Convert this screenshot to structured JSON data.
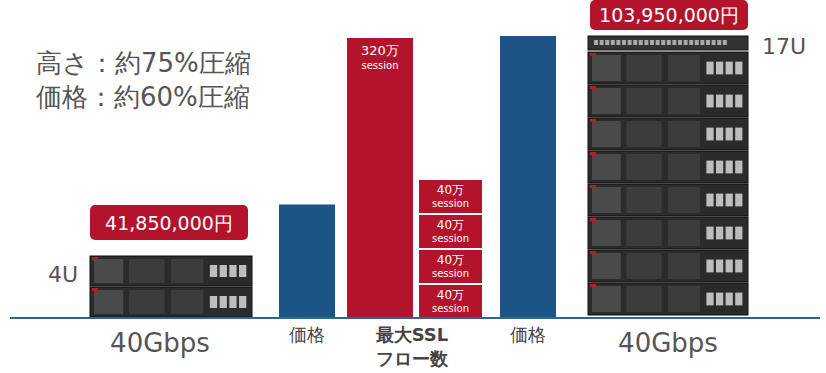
{
  "chart_data": {
    "type": "bar",
    "tick_labels": false,
    "annotations": [
      "高さ：約75%圧縮",
      "価格：約60%圧縮"
    ],
    "products": [
      {
        "throughput": "40Gbps",
        "rack_height": "4U"
      },
      {
        "throughput": "40Gbps",
        "rack_height": "17U"
      }
    ],
    "price": {
      "categories": [
        "価格",
        "価格"
      ],
      "values": [
        41850000,
        103950000
      ],
      "value_labels": [
        "41,850,000円",
        "103,950,000円"
      ],
      "color": "#1c5487",
      "ylim": [
        0,
        103950000
      ]
    },
    "ssl_flows": {
      "category": [
        "最大SSL",
        "フロー数"
      ],
      "unit": "session",
      "series": [
        {
          "values": [
            3200000
          ],
          "value_labels": [
            "320万"
          ],
          "color": "#b3142c"
        },
        {
          "values": [
            400000,
            400000,
            400000,
            400000
          ],
          "value_labels": [
            "40万",
            "40万",
            "40万",
            "40万"
          ],
          "color": "#b3142c",
          "stacked": true
        }
      ],
      "ylim": [
        0,
        3200000
      ]
    }
  }
}
